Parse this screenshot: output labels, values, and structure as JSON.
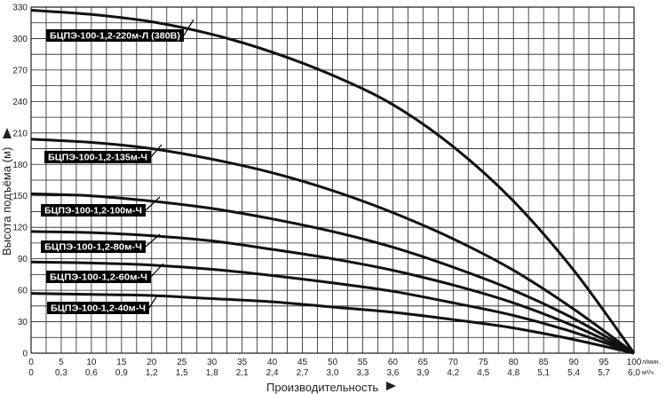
{
  "chart_data": {
    "type": "line",
    "title": "",
    "xlabel": "Производительность",
    "ylabel": "Высота подъёма (м)",
    "x_lpm_ticks": [
      "0",
      "5",
      "10",
      "15",
      "20",
      "25",
      "30",
      "35",
      "40",
      "45",
      "50",
      "55",
      "60",
      "65",
      "70",
      "75",
      "80",
      "85",
      "90",
      "95",
      "100"
    ],
    "x_m3h_ticks": [
      "0",
      "0,3",
      "0,6",
      "0,9",
      "1,2",
      "1,5",
      "1,8",
      "2,1",
      "2,4",
      "2,7",
      "3,0",
      "3,3",
      "3,6",
      "3,9",
      "4,2",
      "4,5",
      "4,8",
      "5,1",
      "5,4",
      "5,7",
      "6,0"
    ],
    "x_lpm_unit": "л/мин.",
    "x_m3h_unit": "м³/ч.",
    "xlim": [
      0,
      100
    ],
    "y_ticks": [
      "0",
      "30",
      "60",
      "90",
      "120",
      "150",
      "180",
      "210",
      "240",
      "270",
      "300",
      "330"
    ],
    "ylim": [
      0,
      330
    ],
    "grid": true,
    "x": [
      0,
      10,
      20,
      30,
      40,
      50,
      60,
      70,
      80,
      90,
      100
    ],
    "series": [
      {
        "name": "БЦПЭ-100-1,2-220м-Л (380В)",
        "values": [
          327,
          323,
          316,
          304,
          287,
          265,
          237,
          197,
          145,
          79,
          0
        ]
      },
      {
        "name": "БЦПЭ-100-1,2-135м-Ч",
        "values": [
          204,
          201,
          195,
          185,
          172,
          155,
          134,
          109,
          79,
          42,
          0
        ]
      },
      {
        "name": "БЦПЭ-100-1,2-100м-Ч",
        "values": [
          152,
          150,
          145,
          138,
          128,
          116,
          101,
          82,
          60,
          33,
          0
        ]
      },
      {
        "name": "БЦПЭ-100-1,2-80м-Ч",
        "values": [
          116,
          115,
          112,
          107,
          99,
          90,
          79,
          65,
          48,
          26,
          0
        ]
      },
      {
        "name": "БЦПЭ-100-1,2-60м-Ч",
        "values": [
          87,
          86,
          84,
          80,
          74,
          67,
          59,
          48,
          36,
          20,
          0
        ]
      },
      {
        "name": "БЦПЭ-100-1,2-40м-Ч",
        "values": [
          57,
          56,
          55,
          52,
          49,
          44,
          39,
          32,
          24,
          13,
          0
        ]
      }
    ],
    "colors": {
      "grid": "#222222",
      "curve": "#111111",
      "label_bg": "#000000",
      "label_text": "#ffffff"
    }
  }
}
